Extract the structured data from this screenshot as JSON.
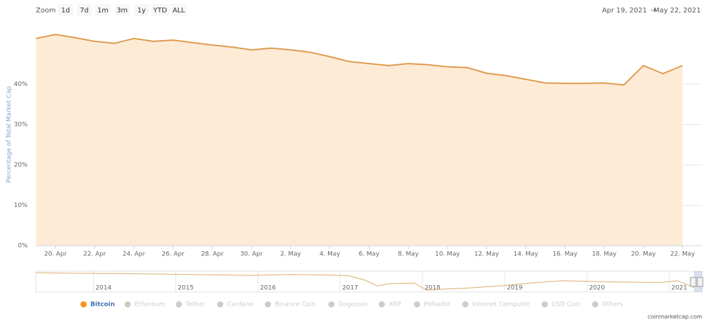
{
  "chart_data": {
    "type": "area",
    "zoom_label": "Zoom",
    "zoom_buttons": [
      "1d",
      "7d",
      "1m",
      "3m",
      "1y",
      "YTD",
      "ALL"
    ],
    "range_from": "Apr 19, 2021",
    "range_arrow": "→",
    "range_to": "May 22, 2021",
    "y_label": "Percentage of Total Market Cap",
    "x": [
      "2021-04-19",
      "2021-04-20",
      "2021-04-21",
      "2021-04-22",
      "2021-04-23",
      "2021-04-24",
      "2021-04-25",
      "2021-04-26",
      "2021-04-27",
      "2021-04-28",
      "2021-04-29",
      "2021-04-30",
      "2021-05-01",
      "2021-05-02",
      "2021-05-03",
      "2021-05-04",
      "2021-05-05",
      "2021-05-06",
      "2021-05-07",
      "2021-05-08",
      "2021-05-09",
      "2021-05-10",
      "2021-05-11",
      "2021-05-12",
      "2021-05-13",
      "2021-05-14",
      "2021-05-15",
      "2021-05-16",
      "2021-05-17",
      "2021-05-18",
      "2021-05-19",
      "2021-05-20",
      "2021-05-21",
      "2021-05-22"
    ],
    "series": [
      {
        "name": "Bitcoin",
        "color": "#de9b4c",
        "fill": "#fdebd6",
        "values": [
          51.3,
          52.3,
          51.5,
          50.6,
          50.1,
          51.3,
          50.6,
          50.9,
          50.3,
          49.7,
          49.2,
          48.5,
          48.9,
          48.5,
          47.9,
          46.8,
          45.6,
          45.1,
          44.6,
          45.1,
          44.8,
          44.3,
          44.1,
          42.7,
          42.1,
          41.2,
          40.3,
          40.2,
          40.2,
          40.3,
          39.8,
          44.6,
          42.6,
          44.6
        ]
      }
    ],
    "hidden_series": [
      "Ethereum",
      "Tether",
      "Cardano",
      "Binance Coin",
      "Dogecoin",
      "XRP",
      "Polkadot",
      "Internet Computer",
      "USD Coin",
      "Others"
    ],
    "xlim": [
      "2021-04-19",
      "2021-05-23"
    ],
    "xticks": [
      {
        "value": "2021-04-20",
        "label": "20. Apr"
      },
      {
        "value": "2021-04-22",
        "label": "22. Apr"
      },
      {
        "value": "2021-04-24",
        "label": "24. Apr"
      },
      {
        "value": "2021-04-26",
        "label": "26. Apr"
      },
      {
        "value": "2021-04-28",
        "label": "28. Apr"
      },
      {
        "value": "2021-04-30",
        "label": "30. Apr"
      },
      {
        "value": "2021-05-02",
        "label": "2. May"
      },
      {
        "value": "2021-05-04",
        "label": "4. May"
      },
      {
        "value": "2021-05-06",
        "label": "6. May"
      },
      {
        "value": "2021-05-08",
        "label": "8. May"
      },
      {
        "value": "2021-05-10",
        "label": "10. May"
      },
      {
        "value": "2021-05-12",
        "label": "12. May"
      },
      {
        "value": "2021-05-14",
        "label": "14. May"
      },
      {
        "value": "2021-05-16",
        "label": "16. May"
      },
      {
        "value": "2021-05-18",
        "label": "18. May"
      },
      {
        "value": "2021-05-20",
        "label": "20. May"
      },
      {
        "value": "2021-05-22",
        "label": "22. May"
      }
    ],
    "ylim": [
      0,
      54
    ],
    "yticks": [
      {
        "value": 0,
        "label": "0%"
      },
      {
        "value": 10,
        "label": "10%"
      },
      {
        "value": 20,
        "label": "20%"
      },
      {
        "value": 30,
        "label": "30%"
      },
      {
        "value": 40,
        "label": "40%"
      }
    ],
    "grid": true,
    "navigator": {
      "x": [
        2013.3,
        2013.8,
        2014.3,
        2014.9,
        2015.4,
        2015.9,
        2016.4,
        2016.9,
        2017.1,
        2017.3,
        2017.45,
        2017.6,
        2017.9,
        2018.05,
        2018.3,
        2018.6,
        2019.0,
        2019.4,
        2019.7,
        2020.0,
        2020.5,
        2020.9,
        2021.1,
        2021.3
      ],
      "values": [
        95,
        93,
        92,
        90,
        88,
        86,
        89,
        87,
        85,
        70,
        50,
        58,
        60,
        36,
        40,
        44,
        52,
        62,
        68,
        66,
        63,
        62,
        68,
        45
      ],
      "xlim": [
        2013.3,
        2021.4
      ],
      "ylim": [
        30,
        100
      ],
      "xticks": [
        2014,
        2015,
        2016,
        2017,
        2018,
        2019,
        2020,
        2021
      ]
    },
    "credit": "coinmarketcap.com"
  }
}
